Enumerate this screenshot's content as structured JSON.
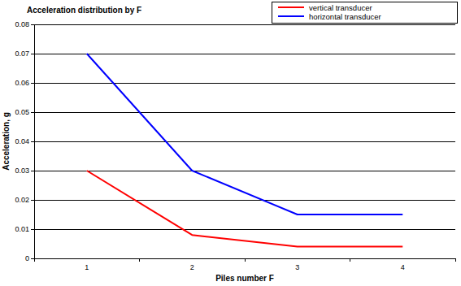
{
  "chart_data": {
    "type": "line",
    "title": "Acceleration distribution by F",
    "x_label": "Piles number F",
    "y_label": "Acceleration, g",
    "categories": [
      "1",
      "2",
      "3",
      "4"
    ],
    "series": [
      {
        "name": "vertical transducer",
        "color": "#ff0000",
        "values": [
          0.03,
          0.008,
          0.004,
          0.004
        ]
      },
      {
        "name": "horizontal transducer",
        "color": "#0000ff",
        "values": [
          0.07,
          0.03,
          0.015,
          0.015
        ]
      }
    ],
    "ylim": [
      0,
      0.08
    ],
    "yticks": [
      0,
      0.01,
      0.02,
      0.03,
      0.04,
      0.05,
      0.06,
      0.07,
      0.08
    ],
    "grid": true,
    "legend": "upper right"
  }
}
